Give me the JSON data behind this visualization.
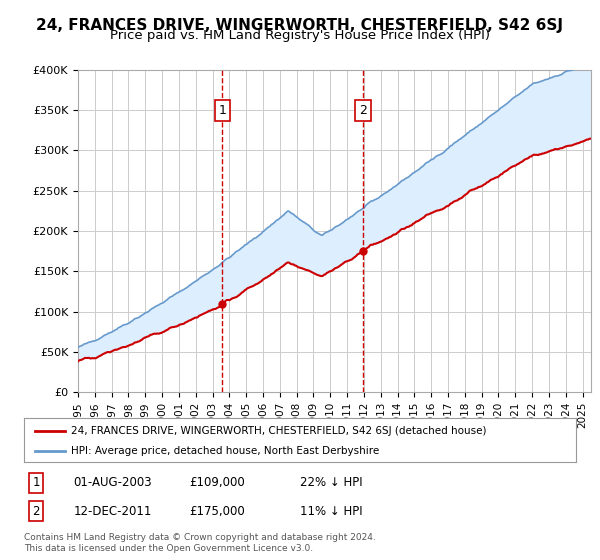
{
  "title": "24, FRANCES DRIVE, WINGERWORTH, CHESTERFIELD, S42 6SJ",
  "subtitle": "Price paid vs. HM Land Registry's House Price Index (HPI)",
  "title_fontsize": 11,
  "subtitle_fontsize": 9.5,
  "ylabel_ticks": [
    "£0",
    "£50K",
    "£100K",
    "£150K",
    "£200K",
    "£250K",
    "£300K",
    "£350K",
    "£400K"
  ],
  "ylim": [
    0,
    400000
  ],
  "xlim_start": 1995.0,
  "xlim_end": 2025.5,
  "sale1_x": 2003.58,
  "sale1_y": 109000,
  "sale1_label": "1",
  "sale1_date": "01-AUG-2003",
  "sale1_price": "£109,000",
  "sale1_hpi": "22% ↓ HPI",
  "sale2_x": 2011.95,
  "sale2_y": 175000,
  "sale2_label": "2",
  "sale2_date": "12-DEC-2011",
  "sale2_price": "£175,000",
  "sale2_hpi": "11% ↓ HPI",
  "legend_line1": "24, FRANCES DRIVE, WINGERWORTH, CHESTERFIELD, S42 6SJ (detached house)",
  "legend_line2": "HPI: Average price, detached house, North East Derbyshire",
  "footer": "Contains HM Land Registry data © Crown copyright and database right 2024.\nThis data is licensed under the Open Government Licence v3.0.",
  "line_color_red": "#cc0000",
  "line_color_blue": "#6699cc",
  "fill_color": "#ddeeff",
  "background_color": "#ffffff",
  "grid_color": "#cccccc"
}
